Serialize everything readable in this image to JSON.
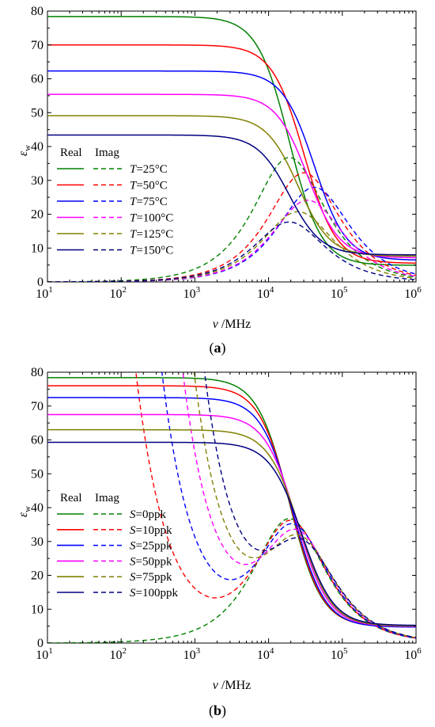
{
  "chart_data": [
    {
      "type": "line",
      "panel_label": "(a)",
      "panel_letter": "a",
      "xlabel_var": "v",
      "xlabel_unit": " /MHz",
      "ylabel_main": "ε",
      "ylabel_sub": "w",
      "xscale": "log",
      "xlim": [
        1,
        6
      ],
      "ylim": [
        0,
        80
      ],
      "xticks": [
        "10",
        "10",
        "10",
        "10",
        "10",
        "10"
      ],
      "xtick_exp": [
        "1",
        "2",
        "3",
        "4",
        "5",
        "6"
      ],
      "yticks": [
        "0",
        "10",
        "20",
        "30",
        "40",
        "50",
        "60",
        "70",
        "80"
      ],
      "legend": {
        "header_real": "Real",
        "header_imag": "Imag",
        "placement": "left-center",
        "entries": [
          {
            "var": "T",
            "rest": "=25°C"
          },
          {
            "var": "T",
            "rest": "=50°C"
          },
          {
            "var": "T",
            "rest": "=75°C"
          },
          {
            "var": "T",
            "rest": "=100°C"
          },
          {
            "var": "T",
            "rest": "=125°C"
          },
          {
            "var": "T",
            "rest": "=150°C"
          }
        ]
      },
      "series": [
        {
          "color": "#008000",
          "static": 78.4,
          "inf": 4.9,
          "relax_log": 4.28,
          "sigma_log": null
        },
        {
          "color": "#ff0000",
          "static": 70.0,
          "inf": 5.5,
          "relax_log": 4.48,
          "sigma_log": null
        },
        {
          "color": "#0000ff",
          "static": 62.3,
          "inf": 6.4,
          "relax_log": 4.62,
          "sigma_log": null
        },
        {
          "color": "#ff00ff",
          "static": 55.4,
          "inf": 7.1,
          "relax_log": 4.53,
          "sigma_log": null
        },
        {
          "color": "#808000",
          "static": 49.1,
          "inf": 7.6,
          "relax_log": 4.4,
          "sigma_log": null
        },
        {
          "color": "#000080",
          "static": 43.4,
          "inf": 8.0,
          "relax_log": 4.28,
          "sigma_log": null
        }
      ]
    },
    {
      "type": "line",
      "panel_label": "(b)",
      "panel_letter": "b",
      "xlabel_var": "v",
      "xlabel_unit": " /MHz",
      "ylabel_main": "ε",
      "ylabel_sub": "w",
      "xscale": "log",
      "xlim": [
        1,
        6
      ],
      "ylim": [
        0,
        80
      ],
      "xticks": [
        "10",
        "10",
        "10",
        "10",
        "10",
        "10"
      ],
      "xtick_exp": [
        "1",
        "2",
        "3",
        "4",
        "5",
        "6"
      ],
      "yticks": [
        "0",
        "10",
        "20",
        "30",
        "40",
        "50",
        "60",
        "70",
        "80"
      ],
      "legend": {
        "header_real": "Real",
        "header_imag": "Imag",
        "placement": "bottom-left",
        "entries": [
          {
            "var": "S",
            "rest": "=0ppk"
          },
          {
            "var": "S",
            "rest": "=10ppk"
          },
          {
            "var": "S",
            "rest": "=25ppk"
          },
          {
            "var": "S",
            "rest": "=50ppk"
          },
          {
            "var": "S",
            "rest": "=75ppk"
          },
          {
            "var": "S",
            "rest": "=100ppk"
          }
        ]
      },
      "series": [
        {
          "color": "#008000",
          "static": 78.4,
          "inf": 4.9,
          "relax_log": 4.28,
          "sigma_log": null
        },
        {
          "color": "#ff0000",
          "static": 76.0,
          "inf": 4.8,
          "relax_log": 4.3,
          "sigma_log": 4.1
        },
        {
          "color": "#0000ff",
          "static": 72.5,
          "inf": 4.7,
          "relax_log": 4.33,
          "sigma_log": 4.45
        },
        {
          "color": "#ff00ff",
          "static": 67.5,
          "inf": 4.9,
          "relax_log": 4.38,
          "sigma_log": 4.73
        },
        {
          "color": "#808000",
          "static": 63.0,
          "inf": 5.0,
          "relax_log": 4.42,
          "sigma_log": 4.88
        },
        {
          "color": "#000080",
          "static": 59.3,
          "inf": 5.2,
          "relax_log": 4.45,
          "sigma_log": 5.02
        }
      ]
    }
  ]
}
